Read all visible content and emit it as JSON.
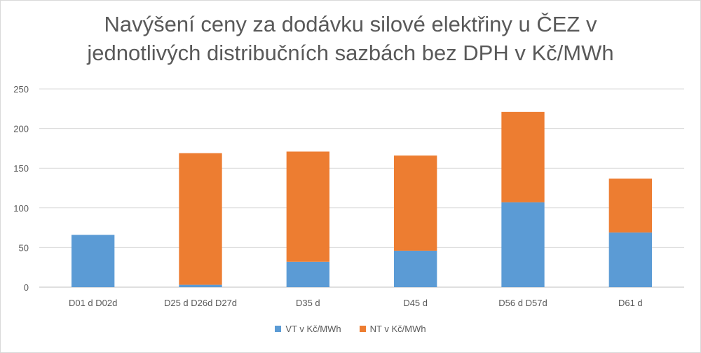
{
  "chart_data": {
    "type": "bar",
    "stacked": true,
    "title_lines": [
      "Navýšení ceny za dodávku silové elektřiny u ČEZ v",
      "jednotlivých distribučních sazbách bez DPH v Kč/MWh"
    ],
    "xlabel": "",
    "ylabel": "",
    "categories": [
      "D01 d D02d",
      "D25 d D26d D27d",
      "D35 d",
      "D45 d",
      "D56 d D57d",
      "D61 d"
    ],
    "series": [
      {
        "name": "VT v Kč/MWh",
        "color": "#5b9bd5",
        "values": [
          66,
          3,
          32,
          46,
          107,
          69
        ]
      },
      {
        "name": "NT v Kč/MWh",
        "color": "#ed7d31",
        "values": [
          0,
          166,
          139,
          120,
          114,
          68
        ]
      }
    ],
    "ylim": [
      0,
      250
    ],
    "yticks": [
      0,
      50,
      100,
      150,
      200,
      250
    ],
    "grid": true,
    "legend_position": "bottom"
  }
}
